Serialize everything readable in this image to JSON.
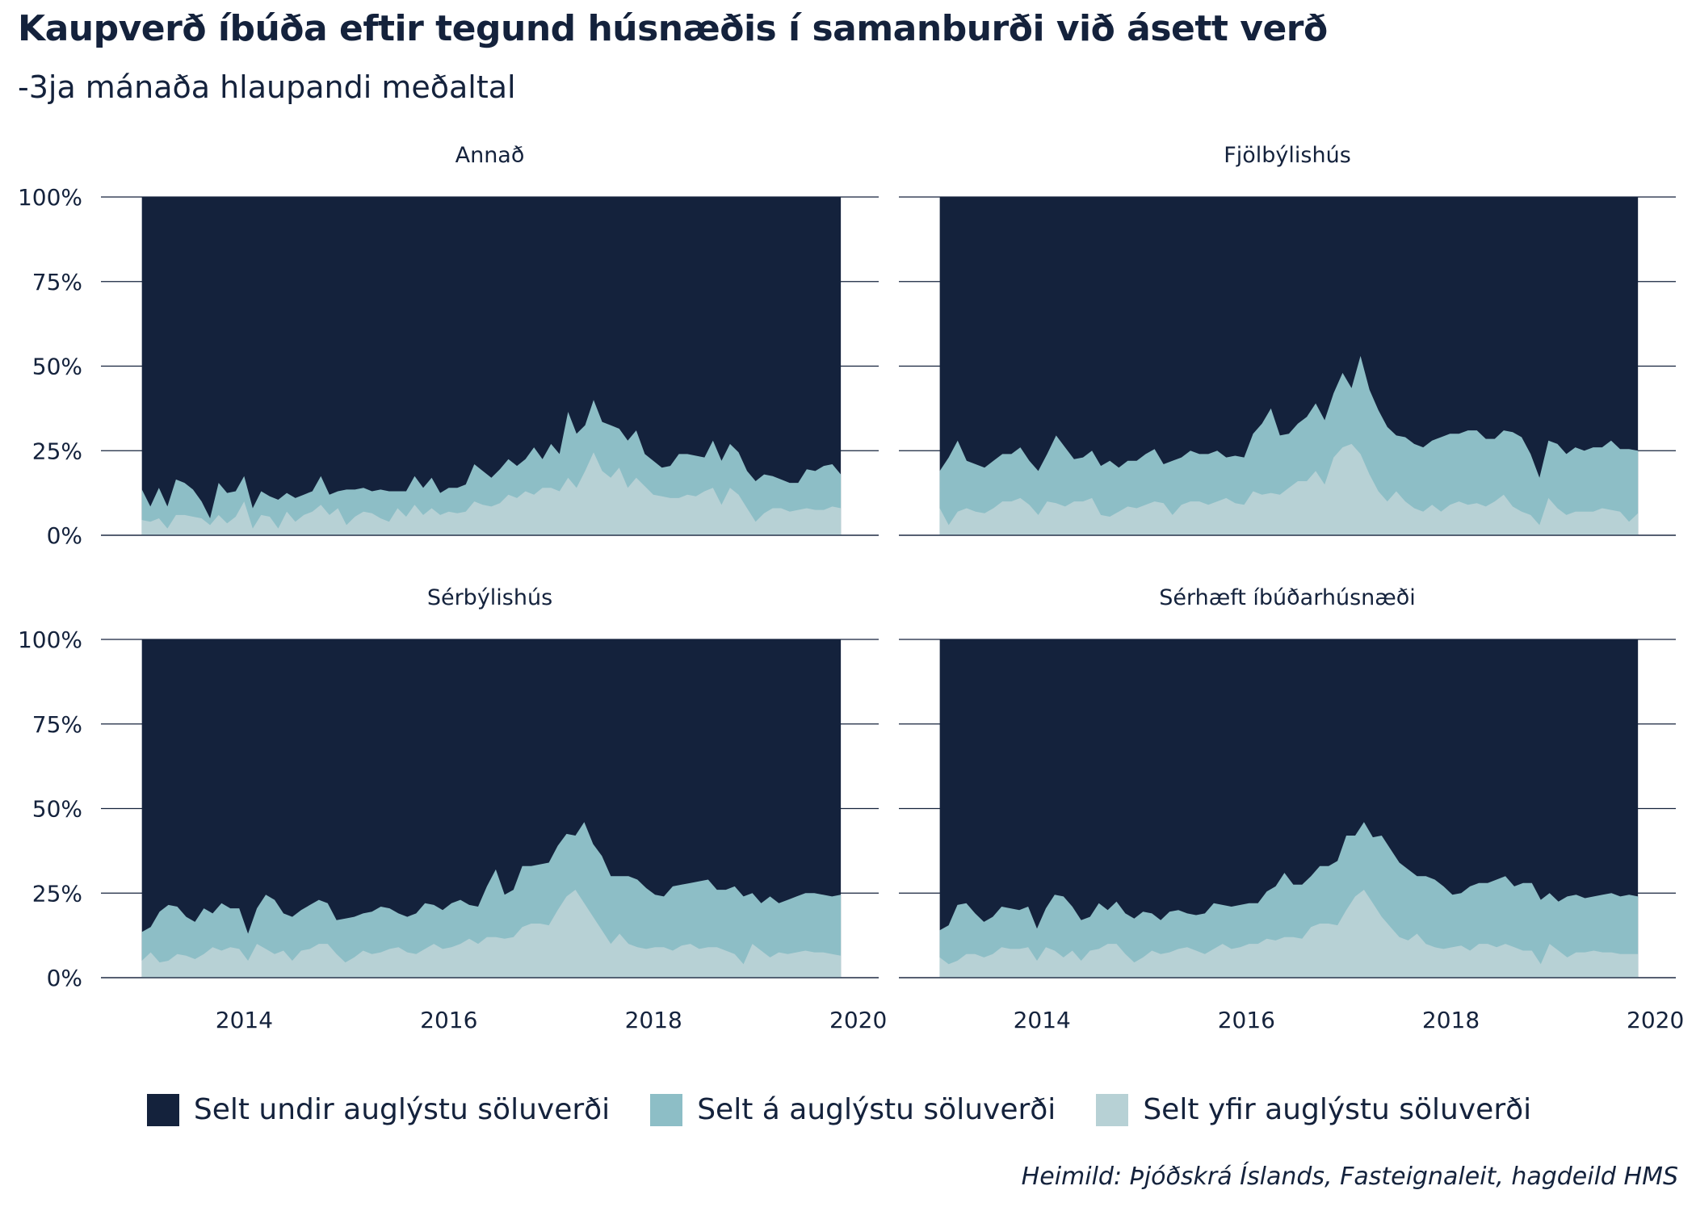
{
  "title": "Kaupverð íbúða eftir tegund húsnæðis í samanburði við ásett verð",
  "subtitle": "-3ja mánaða hlaupandi meðaltal",
  "caption": "Heimild: Þjóðskrá Íslands, Fasteignaleit, hagdeild HMS",
  "colors": {
    "below": "#14223c",
    "at": "#8dbec6",
    "above": "#b7d1d5",
    "gridline": "#14223c",
    "text": "#14223c"
  },
  "legend": [
    {
      "label": "Selt undir auglýstu söluverði",
      "color": "#14223c"
    },
    {
      "label": "Selt á auglýstu söluverði",
      "color": "#8dbec6"
    },
    {
      "label": "Selt yfir auglýstu söluverði",
      "color": "#b7d1d5"
    }
  ],
  "chart_data": {
    "type": "area",
    "stacked": true,
    "x_tick_labels": [
      "2014",
      "2016",
      "2018",
      "2020"
    ],
    "x_ticks": [
      2014,
      2016,
      2018,
      2020
    ],
    "xlim": [
      2012.6,
      2020.2
    ],
    "ylim": [
      0,
      100
    ],
    "y_tick_labels": [
      "0%",
      "25%",
      "50%",
      "75%",
      "100%"
    ],
    "y_ticks": [
      0,
      25,
      50,
      75,
      100
    ],
    "grid": "horizontal",
    "legend_position": "bottom",
    "panels": [
      {
        "title": "Annað",
        "x_start": 2013.0,
        "x_end": 2019.83,
        "series": [
          {
            "name": "Selt yfir auglýstu söluverði",
            "values": [
              4.5,
              4.0,
              5.0,
              2.0,
              6.0,
              6.0,
              5.5,
              5.0,
              3.0,
              6.0,
              3.5,
              5.5,
              10.0,
              2.0,
              6.0,
              5.5,
              2.0,
              7.0,
              4.0,
              6.0,
              7.0,
              9.0,
              6.0,
              8.0,
              3.0,
              5.5,
              7.0,
              6.5,
              5.0,
              4.0,
              8.0,
              5.5,
              9.0,
              6.0,
              8.0,
              6.0,
              7.0,
              6.5,
              7.0,
              10.0,
              9.0,
              8.5,
              9.5,
              12.0,
              11.0,
              13.0,
              12.0,
              14.0,
              14.0,
              13.0,
              17.0,
              14.0,
              19.0,
              24.5,
              19.0,
              17.0,
              20.0,
              14.0,
              17.0,
              14.5,
              12.0,
              11.5,
              11.0,
              11.0,
              12.0,
              11.5,
              13.0,
              14.0,
              9.0,
              14.0,
              12.0,
              8.0,
              4.0,
              6.5,
              8.0,
              8.0,
              7.0,
              7.5,
              8.0,
              7.5,
              7.5,
              8.5,
              8.0
            ]
          },
          {
            "name": "Selt á auglýstu söluverði",
            "values": [
              9.0,
              4.5,
              9.0,
              6.5,
              10.5,
              9.5,
              8.0,
              5.0,
              2.0,
              9.5,
              9.0,
              7.5,
              7.5,
              6.0,
              7.0,
              6.0,
              8.5,
              5.5,
              7.0,
              6.0,
              6.0,
              8.5,
              6.0,
              5.0,
              10.5,
              8.0,
              7.0,
              6.5,
              8.5,
              9.0,
              5.0,
              7.5,
              8.5,
              8.0,
              9.0,
              6.5,
              7.0,
              7.5,
              8.0,
              11.0,
              10.0,
              8.5,
              10.0,
              10.5,
              9.5,
              9.5,
              14.0,
              8.5,
              13.0,
              11.0,
              19.5,
              16.0,
              13.5,
              15.5,
              14.5,
              15.5,
              11.5,
              14.0,
              14.0,
              9.5,
              10.0,
              8.5,
              9.5,
              13.0,
              12.0,
              12.0,
              10.0,
              14.0,
              13.0,
              13.0,
              12.5,
              11.0,
              12.0,
              11.5,
              9.5,
              8.5,
              8.5,
              8.0,
              11.5,
              11.5,
              13.0,
              12.5,
              10.0
            ]
          }
        ]
      },
      {
        "title": "Fjölbýlishús",
        "x_start": 2013.0,
        "x_end": 2019.83,
        "series": [
          {
            "name": "Selt yfir auglýstu söluverði",
            "values": [
              8.0,
              3.0,
              7.0,
              8.0,
              7.0,
              6.5,
              8.0,
              10.0,
              10.0,
              11.0,
              9.0,
              6.0,
              10.0,
              9.5,
              8.5,
              10.0,
              10.0,
              11.0,
              6.0,
              5.5,
              7.0,
              8.5,
              8.0,
              9.0,
              10.0,
              9.5,
              6.0,
              9.0,
              10.0,
              10.0,
              9.0,
              10.0,
              11.0,
              9.5,
              9.0,
              13.0,
              12.0,
              12.5,
              12.0,
              14.0,
              16.0,
              16.0,
              19.0,
              15.0,
              23.0,
              26.0,
              27.0,
              24.0,
              18.0,
              13.0,
              10.0,
              13.0,
              10.0,
              8.0,
              7.0,
              9.0,
              7.0,
              9.0,
              10.0,
              9.0,
              9.5,
              8.5,
              10.0,
              12.0,
              8.5,
              7.0,
              6.0,
              3.0,
              11.0,
              8.0,
              6.0,
              7.0,
              7.0,
              7.0,
              8.0,
              7.5,
              7.0,
              4.0,
              6.5
            ]
          },
          {
            "name": "Selt á auglýstu söluverði",
            "values": [
              11.0,
              20.0,
              21.0,
              14.0,
              14.0,
              13.5,
              14.0,
              14.0,
              14.0,
              15.0,
              13.0,
              13.0,
              14.0,
              20.0,
              17.5,
              12.5,
              13.0,
              14.0,
              14.5,
              16.5,
              13.0,
              13.5,
              14.0,
              15.0,
              15.5,
              11.5,
              16.0,
              14.0,
              15.0,
              14.0,
              15.0,
              15.0,
              12.0,
              14.0,
              14.0,
              17.0,
              21.0,
              25.0,
              17.5,
              16.0,
              17.0,
              19.0,
              20.0,
              19.0,
              19.0,
              22.0,
              16.5,
              29.0,
              25.0,
              24.0,
              22.0,
              16.5,
              19.0,
              19.0,
              19.0,
              19.0,
              22.0,
              21.0,
              20.0,
              22.0,
              21.5,
              20.0,
              18.5,
              19.0,
              22.0,
              22.0,
              18.0,
              14.0,
              17.0,
              19.0,
              18.0,
              19.0,
              18.0,
              19.0,
              18.0,
              20.5,
              18.5,
              21.5,
              18.5
            ]
          }
        ]
      },
      {
        "title": "Sérbýlishús",
        "x_start": 2013.0,
        "x_end": 2019.83,
        "series": [
          {
            "name": "Selt yfir auglýstu söluverði",
            "values": [
              5.0,
              7.5,
              4.5,
              5.0,
              7.0,
              6.5,
              5.5,
              7.0,
              9.0,
              8.0,
              9.0,
              8.5,
              5.0,
              10.0,
              8.5,
              7.0,
              8.0,
              5.0,
              8.0,
              8.5,
              10.0,
              10.0,
              7.0,
              4.5,
              6.0,
              8.0,
              7.0,
              7.5,
              8.5,
              9.0,
              7.5,
              7.0,
              8.5,
              10.0,
              8.5,
              9.0,
              10.0,
              11.5,
              10.0,
              12.0,
              12.0,
              11.5,
              12.0,
              15.0,
              16.0,
              16.0,
              15.5,
              20.0,
              24.0,
              26.0,
              22.0,
              18.0,
              14.0,
              10.0,
              13.0,
              10.0,
              9.0,
              8.5,
              9.0,
              9.0,
              8.0,
              9.5,
              10.0,
              8.5,
              9.0,
              9.0,
              8.0,
              7.0,
              4.0,
              10.0,
              8.0,
              6.0,
              7.5,
              7.0,
              7.5,
              8.0,
              7.5,
              7.5,
              7.0,
              6.5
            ]
          },
          {
            "name": "Selt á auglýstu söluverði",
            "values": [
              8.5,
              7.5,
              15.0,
              16.5,
              14.0,
              11.5,
              11.0,
              13.5,
              10.0,
              14.0,
              11.5,
              12.0,
              8.0,
              10.5,
              16.0,
              16.0,
              11.0,
              13.0,
              12.0,
              13.0,
              13.0,
              12.0,
              10.0,
              13.0,
              12.0,
              11.0,
              12.5,
              13.5,
              12.0,
              10.0,
              10.5,
              12.0,
              13.5,
              11.5,
              11.5,
              13.0,
              13.0,
              10.0,
              11.0,
              15.0,
              20.0,
              13.0,
              14.0,
              18.0,
              17.0,
              17.5,
              18.5,
              19.0,
              18.5,
              16.0,
              24.0,
              21.5,
              22.0,
              20.0,
              17.0,
              20.0,
              20.0,
              18.0,
              15.5,
              15.0,
              19.0,
              18.0,
              18.0,
              20.0,
              20.0,
              17.0,
              18.0,
              20.0,
              20.0,
              15.0,
              14.0,
              18.0,
              14.5,
              16.0,
              16.5,
              17.0,
              17.5,
              17.0,
              17.0,
              18.0
            ]
          }
        ]
      },
      {
        "title": "Sérhæft íbúðarhúsnæði",
        "x_start": 2013.0,
        "x_end": 2019.83,
        "series": [
          {
            "name": "Selt yfir auglýstu söluverði",
            "values": [
              6.0,
              4.0,
              5.0,
              7.0,
              7.0,
              6.0,
              7.0,
              9.0,
              8.5,
              8.5,
              9.0,
              5.0,
              9.0,
              8.0,
              6.0,
              8.0,
              5.0,
              8.0,
              8.5,
              10.0,
              10.0,
              7.0,
              4.5,
              6.0,
              8.0,
              7.0,
              7.5,
              8.5,
              9.0,
              8.0,
              7.0,
              8.5,
              10.0,
              8.5,
              9.0,
              10.0,
              10.0,
              11.5,
              11.0,
              12.0,
              12.0,
              11.5,
              15.0,
              16.0,
              16.0,
              15.5,
              20.0,
              24.0,
              26.0,
              22.0,
              18.0,
              15.0,
              12.0,
              11.0,
              13.0,
              10.0,
              9.0,
              8.5,
              9.0,
              9.5,
              8.0,
              10.0,
              10.0,
              9.0,
              10.0,
              9.0,
              8.0,
              8.0,
              4.0,
              10.0,
              8.0,
              6.0,
              7.5,
              7.5,
              8.0,
              7.5,
              7.5,
              7.0,
              7.0,
              7.0
            ]
          },
          {
            "name": "Selt á auglýstu söluverði",
            "values": [
              8.0,
              11.5,
              16.5,
              15.0,
              12.0,
              10.5,
              11.0,
              12.0,
              12.0,
              11.5,
              12.0,
              9.5,
              11.5,
              16.5,
              18.0,
              13.0,
              12.0,
              10.0,
              13.5,
              10.0,
              12.5,
              12.0,
              13.0,
              13.5,
              11.0,
              10.0,
              12.0,
              11.5,
              10.0,
              10.5,
              12.0,
              13.5,
              11.5,
              12.5,
              12.5,
              12.0,
              12.0,
              14.0,
              16.0,
              19.0,
              15.5,
              16.0,
              15.0,
              17.0,
              17.0,
              19.0,
              22.0,
              18.0,
              20.0,
              19.5,
              24.0,
              23.0,
              22.0,
              21.0,
              17.0,
              20.0,
              20.0,
              18.5,
              15.5,
              15.5,
              19.0,
              18.0,
              18.0,
              20.0,
              20.0,
              18.0,
              20.0,
              20.0,
              19.0,
              15.0,
              14.5,
              18.0,
              17.0,
              16.0,
              16.0,
              17.0,
              17.5,
              17.0,
              17.5,
              17.0
            ]
          }
        ]
      }
    ]
  }
}
